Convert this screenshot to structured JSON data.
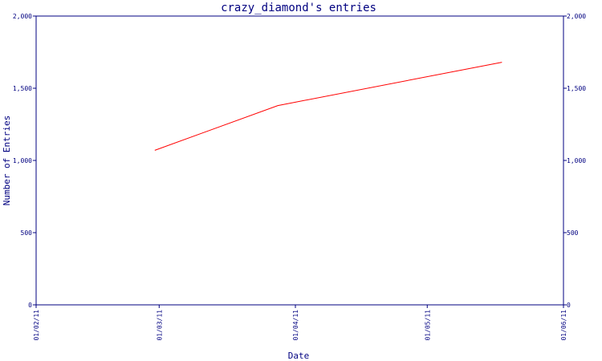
{
  "chart_data": {
    "type": "line",
    "title": "crazy_diamond's entries",
    "xlabel": "Date",
    "ylabel": "Number of Entries",
    "x_tick_labels": [
      "01/02/11",
      "01/03/11",
      "01/04/11",
      "01/05/11",
      "01/06/11"
    ],
    "y_tick_labels": [
      "0",
      "500",
      "1,000",
      "1,500",
      "2,000"
    ],
    "y_ticks": [
      0,
      500,
      1000,
      1500,
      2000
    ],
    "ylim": [
      0,
      2000
    ],
    "xlim": [
      "01/02/11",
      "01/06/11"
    ],
    "grid": false,
    "secondary_y_axis": true,
    "series": [
      {
        "color": "#ff0000",
        "x": [
          "01/02/11 (day 28)",
          "01/03/11 (day 28)",
          "01/05/11 (day 18)"
        ],
        "points": [
          {
            "date": "2011-02-28",
            "value": 1070
          },
          {
            "date": "2011-03-28",
            "value": 1380
          },
          {
            "date": "2011-05-18",
            "value": 1680
          }
        ]
      }
    ]
  }
}
